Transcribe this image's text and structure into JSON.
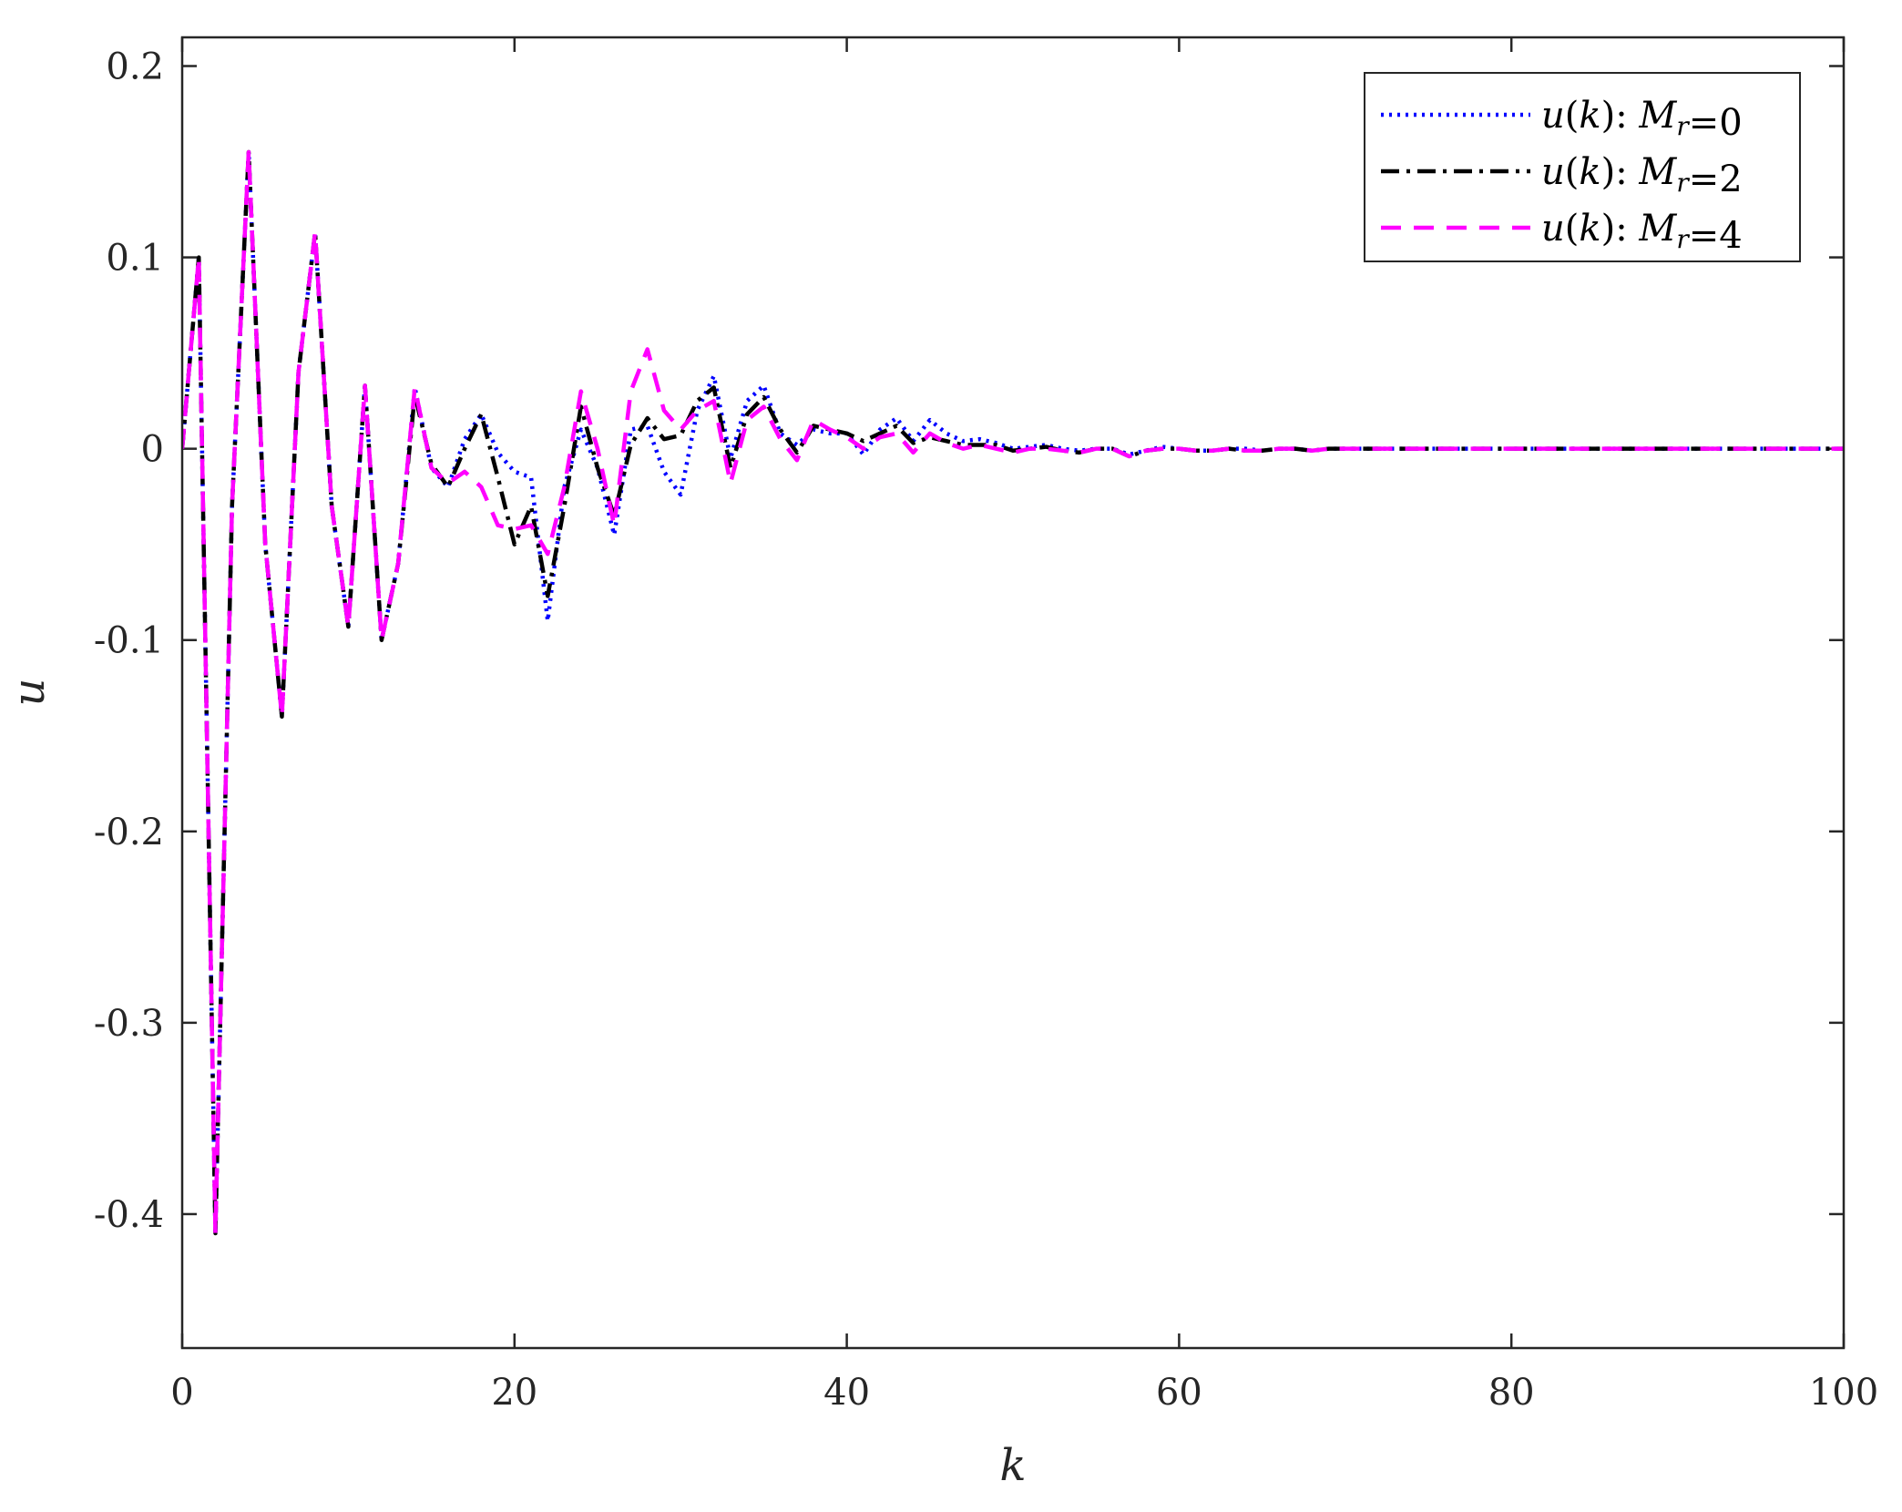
{
  "chart_data": {
    "type": "line",
    "xlabel": "k",
    "ylabel": "u",
    "xlim": [
      0,
      100
    ],
    "ylim": [
      -0.47,
      0.215
    ],
    "xticks": [
      0,
      20,
      40,
      60,
      80,
      100
    ],
    "yticks": [
      0.2,
      0.1,
      0,
      -0.1,
      -0.2,
      -0.3,
      -0.4
    ],
    "xtick_labels": [
      "0",
      "20",
      "40",
      "60",
      "80",
      "100"
    ],
    "ytick_labels": [
      "0.2",
      "0.1",
      "0",
      "-0.1",
      "-0.2",
      "-0.3",
      "-0.4"
    ],
    "grid": false,
    "legend_position": "top-right",
    "series": [
      {
        "name": "u(k): Mr=0",
        "label_parts": {
          "fn": "u",
          "arg": "k",
          "sym": "M",
          "sub": "r",
          "val": "0"
        },
        "color": "#0000ff",
        "dash": "dotted",
        "points": [
          [
            0,
            0
          ],
          [
            1,
            0.1
          ],
          [
            2,
            -0.41
          ],
          [
            3,
            -0.03
          ],
          [
            4,
            0.155
          ],
          [
            5,
            -0.05
          ],
          [
            6,
            -0.14
          ],
          [
            7,
            0.04
          ],
          [
            8,
            0.113
          ],
          [
            9,
            -0.03
          ],
          [
            10,
            -0.093
          ],
          [
            11,
            0.033
          ],
          [
            12,
            -0.1
          ],
          [
            13,
            -0.06
          ],
          [
            14,
            0.032
          ],
          [
            15,
            -0.01
          ],
          [
            16,
            -0.02
          ],
          [
            17,
            0.005
          ],
          [
            18,
            0.018
          ],
          [
            19,
            -0.002
          ],
          [
            20,
            -0.012
          ],
          [
            21,
            -0.015
          ],
          [
            22,
            -0.09
          ],
          [
            23,
            -0.02
          ],
          [
            24,
            0.01
          ],
          [
            25,
            -0.01
          ],
          [
            26,
            -0.045
          ],
          [
            27,
            0.01
          ],
          [
            28,
            0.012
          ],
          [
            29,
            -0.012
          ],
          [
            30,
            -0.024
          ],
          [
            31,
            0.02
          ],
          [
            32,
            0.038
          ],
          [
            33,
            -0.005
          ],
          [
            34,
            0.025
          ],
          [
            35,
            0.033
          ],
          [
            36,
            0.008
          ],
          [
            37,
            0.002
          ],
          [
            38,
            0.01
          ],
          [
            39,
            0.008
          ],
          [
            40,
            0.008
          ],
          [
            41,
            -0.003
          ],
          [
            42,
            0.01
          ],
          [
            43,
            0.016
          ],
          [
            44,
            0.004
          ],
          [
            45,
            0.015
          ],
          [
            46,
            0.008
          ],
          [
            47,
            0.004
          ],
          [
            48,
            0.005
          ],
          [
            49,
            0.003
          ],
          [
            50,
            0.0
          ],
          [
            51,
            0.001
          ],
          [
            52,
            0.002
          ],
          [
            53,
            0.0
          ],
          [
            54,
            -0.001
          ],
          [
            55,
            0.0
          ],
          [
            56,
            0.0
          ],
          [
            57,
            -0.003
          ],
          [
            58,
            -0.001
          ],
          [
            59,
            0.001
          ],
          [
            60,
            0.0
          ],
          [
            61,
            -0.001
          ],
          [
            62,
            -0.001
          ],
          [
            63,
            0.0
          ],
          [
            64,
            0.0
          ],
          [
            65,
            -0.001
          ],
          [
            66,
            0.0
          ],
          [
            67,
            0.0
          ],
          [
            68,
            -0.001
          ],
          [
            69,
            0.0
          ],
          [
            70,
            0.0
          ],
          [
            80,
            0.0
          ],
          [
            90,
            0.0
          ],
          [
            100,
            0.0
          ]
        ]
      },
      {
        "name": "u(k): Mr=2",
        "label_parts": {
          "fn": "u",
          "arg": "k",
          "sym": "M",
          "sub": "r",
          "val": "2"
        },
        "color": "#000000",
        "dash": "dashdot",
        "points": [
          [
            0,
            0
          ],
          [
            1,
            0.1
          ],
          [
            2,
            -0.41
          ],
          [
            3,
            -0.03
          ],
          [
            4,
            0.155
          ],
          [
            5,
            -0.05
          ],
          [
            6,
            -0.14
          ],
          [
            7,
            0.04
          ],
          [
            8,
            0.113
          ],
          [
            9,
            -0.03
          ],
          [
            10,
            -0.093
          ],
          [
            11,
            0.033
          ],
          [
            12,
            -0.1
          ],
          [
            13,
            -0.06
          ],
          [
            14,
            0.028
          ],
          [
            15,
            -0.008
          ],
          [
            16,
            -0.02
          ],
          [
            17,
            0.0
          ],
          [
            18,
            0.018
          ],
          [
            19,
            -0.015
          ],
          [
            20,
            -0.05
          ],
          [
            21,
            -0.03
          ],
          [
            22,
            -0.077
          ],
          [
            23,
            -0.03
          ],
          [
            24,
            0.022
          ],
          [
            25,
            -0.01
          ],
          [
            26,
            -0.035
          ],
          [
            27,
            0.002
          ],
          [
            28,
            0.016
          ],
          [
            29,
            0.005
          ],
          [
            30,
            0.007
          ],
          [
            31,
            0.025
          ],
          [
            32,
            0.032
          ],
          [
            33,
            -0.01
          ],
          [
            34,
            0.018
          ],
          [
            35,
            0.027
          ],
          [
            36,
            0.01
          ],
          [
            37,
            -0.002
          ],
          [
            38,
            0.012
          ],
          [
            39,
            0.01
          ],
          [
            40,
            0.008
          ],
          [
            41,
            0.004
          ],
          [
            42,
            0.008
          ],
          [
            43,
            0.012
          ],
          [
            44,
            0.003
          ],
          [
            45,
            0.006
          ],
          [
            46,
            0.004
          ],
          [
            47,
            0.002
          ],
          [
            48,
            0.002
          ],
          [
            49,
            0.002
          ],
          [
            50,
            -0.001
          ],
          [
            51,
            0.0
          ],
          [
            52,
            0.001
          ],
          [
            53,
            -0.001
          ],
          [
            54,
            -0.002
          ],
          [
            55,
            0.0
          ],
          [
            56,
            0.0
          ],
          [
            57,
            -0.004
          ],
          [
            58,
            -0.001
          ],
          [
            59,
            0.0
          ],
          [
            60,
            0.0
          ],
          [
            61,
            -0.001
          ],
          [
            62,
            -0.001
          ],
          [
            63,
            0.0
          ],
          [
            64,
            -0.001
          ],
          [
            65,
            -0.001
          ],
          [
            66,
            0.0
          ],
          [
            67,
            0.0
          ],
          [
            68,
            -0.001
          ],
          [
            69,
            0.0
          ],
          [
            70,
            0.0
          ],
          [
            80,
            0.0
          ],
          [
            90,
            0.0
          ],
          [
            100,
            0.0
          ]
        ]
      },
      {
        "name": "u(k): Mr=4",
        "label_parts": {
          "fn": "u",
          "arg": "k",
          "sym": "M",
          "sub": "r",
          "val": "4"
        },
        "color": "#ff00ff",
        "dash": "dashed",
        "points": [
          [
            0,
            0
          ],
          [
            1,
            0.1
          ],
          [
            2,
            -0.41
          ],
          [
            3,
            -0.03
          ],
          [
            4,
            0.155
          ],
          [
            5,
            -0.05
          ],
          [
            6,
            -0.14
          ],
          [
            7,
            0.04
          ],
          [
            8,
            0.113
          ],
          [
            9,
            -0.03
          ],
          [
            10,
            -0.093
          ],
          [
            11,
            0.033
          ],
          [
            12,
            -0.1
          ],
          [
            13,
            -0.06
          ],
          [
            14,
            0.032
          ],
          [
            15,
            -0.01
          ],
          [
            16,
            -0.018
          ],
          [
            17,
            -0.012
          ],
          [
            18,
            -0.02
          ],
          [
            19,
            -0.04
          ],
          [
            20,
            -0.042
          ],
          [
            21,
            -0.04
          ],
          [
            22,
            -0.055
          ],
          [
            23,
            -0.02
          ],
          [
            24,
            0.03
          ],
          [
            25,
            0.0
          ],
          [
            26,
            -0.04
          ],
          [
            27,
            0.03
          ],
          [
            28,
            0.052
          ],
          [
            29,
            0.02
          ],
          [
            30,
            0.01
          ],
          [
            31,
            0.02
          ],
          [
            32,
            0.025
          ],
          [
            33,
            -0.018
          ],
          [
            34,
            0.015
          ],
          [
            35,
            0.022
          ],
          [
            36,
            0.005
          ],
          [
            37,
            -0.006
          ],
          [
            38,
            0.015
          ],
          [
            39,
            0.01
          ],
          [
            40,
            0.006
          ],
          [
            41,
            0.0
          ],
          [
            42,
            0.006
          ],
          [
            43,
            0.008
          ],
          [
            44,
            -0.002
          ],
          [
            45,
            0.008
          ],
          [
            46,
            0.003
          ],
          [
            47,
            0.0
          ],
          [
            48,
            0.002
          ],
          [
            49,
            0.0
          ],
          [
            50,
            -0.002
          ],
          [
            51,
            0.0
          ],
          [
            52,
            0.0
          ],
          [
            53,
            -0.001
          ],
          [
            54,
            -0.002
          ],
          [
            55,
            0.0
          ],
          [
            56,
            0.0
          ],
          [
            57,
            -0.004
          ],
          [
            58,
            -0.001
          ],
          [
            59,
            0.0
          ],
          [
            60,
            0.0
          ],
          [
            61,
            -0.001
          ],
          [
            62,
            -0.001
          ],
          [
            63,
            0.0
          ],
          [
            64,
            -0.001
          ],
          [
            65,
            -0.001
          ],
          [
            66,
            0.0
          ],
          [
            67,
            0.0
          ],
          [
            68,
            -0.001
          ],
          [
            69,
            0.0
          ],
          [
            70,
            0.0
          ],
          [
            80,
            0.0
          ],
          [
            90,
            0.0
          ],
          [
            100,
            0.0
          ]
        ]
      }
    ]
  }
}
